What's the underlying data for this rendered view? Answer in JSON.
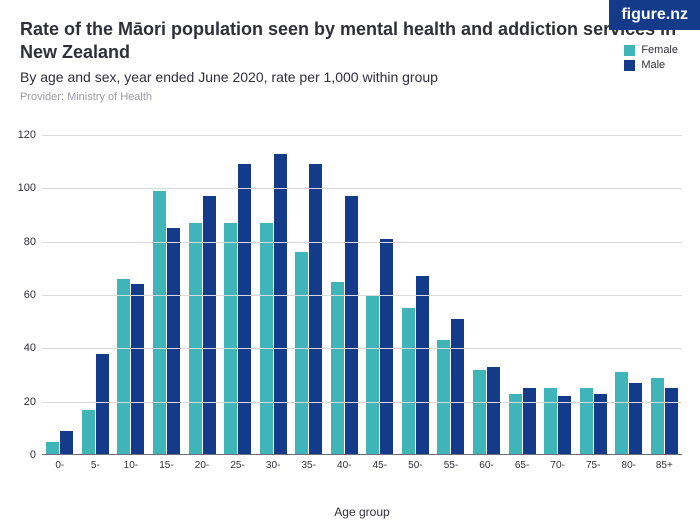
{
  "logo": {
    "text": "figure.nz",
    "bg": "#143b8a",
    "color": "#ffffff"
  },
  "title": {
    "text": "Rate of the Māori population seen by mental health and addiction services in New Zealand",
    "color": "#2f2f3a",
    "fontsize": 18
  },
  "subtitle": {
    "text": "By age and sex, year ended June 2020, rate per 1,000 within group",
    "color": "#2f2f3a",
    "fontsize": 14
  },
  "provider": {
    "text": "Provider: Ministry of Health",
    "color": "#9a9aa6",
    "fontsize": 11
  },
  "legend": {
    "items": [
      {
        "label": "Female",
        "color": "#3fb4b9"
      },
      {
        "label": "Male",
        "color": "#143b8a"
      }
    ],
    "text_color": "#2f2f3a"
  },
  "chart": {
    "type": "bar",
    "xlabel": "Age group",
    "xlabel_color": "#2f2f3a",
    "ylim": [
      0,
      120
    ],
    "ytick_step": 20,
    "ytick_color": "#2f2f3a",
    "grid_color": "#d9d9de",
    "baseline_color": "#6e6e78",
    "background_color": "#ffffff",
    "categories": [
      "0-",
      "5-",
      "10-",
      "15-",
      "20-",
      "25-",
      "30-",
      "35-",
      "40-",
      "45-",
      "50-",
      "55-",
      "60-",
      "65-",
      "70-",
      "75-",
      "80-",
      "85+"
    ],
    "series": [
      {
        "name": "Female",
        "color": "#3fb4b9",
        "values": [
          5,
          17,
          66,
          99,
          87,
          87,
          87,
          76,
          65,
          60,
          55,
          43,
          32,
          23,
          25,
          25,
          31,
          29
        ]
      },
      {
        "name": "Male",
        "color": "#143b8a",
        "values": [
          9,
          38,
          64,
          85,
          97,
          109,
          113,
          109,
          97,
          81,
          67,
          51,
          33,
          25,
          22,
          23,
          27,
          25
        ]
      }
    ]
  }
}
